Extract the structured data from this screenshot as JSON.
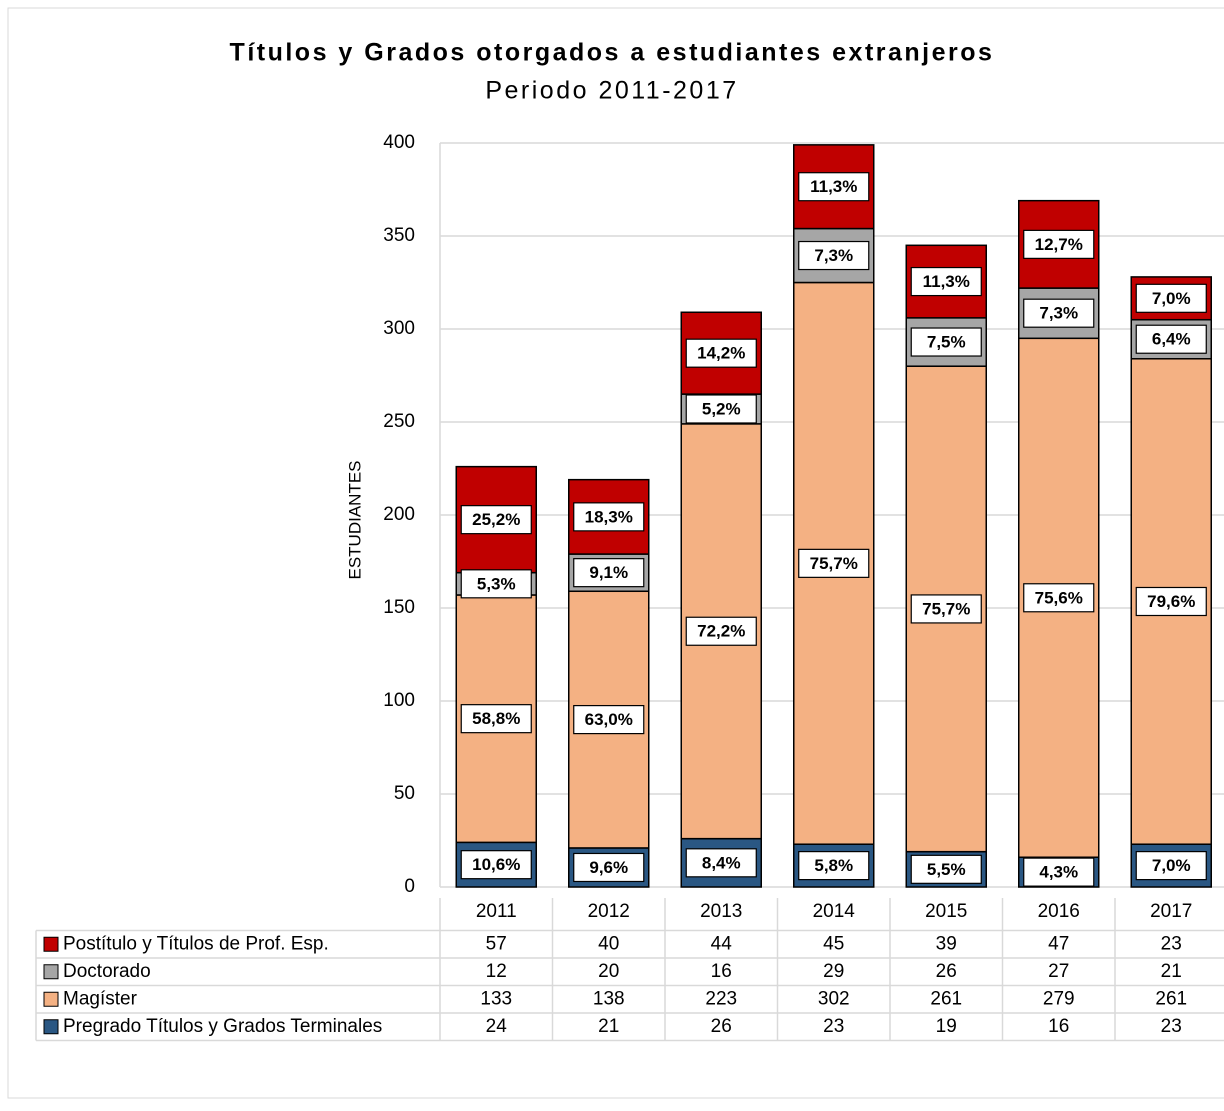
{
  "chart_data": {
    "type": "stacked-bar",
    "title": "Títulos y Grados otorgados a estudiantes extranjeros",
    "subtitle": "Periodo 2011-2017",
    "y_label": "ESTUDIANTES",
    "categories": [
      "2011",
      "2012",
      "2013",
      "2014",
      "2015",
      "2016",
      "2017"
    ],
    "ylim": [
      0,
      400
    ],
    "yticks": [
      0,
      50,
      100,
      150,
      200,
      250,
      300,
      350,
      400
    ],
    "grid": true,
    "series": [
      {
        "name": "Pregrado Títulos y Grados Terminales",
        "color": "#2a5783",
        "values": [
          24,
          21,
          26,
          23,
          19,
          16,
          23
        ],
        "share_labels": [
          "10,6%",
          "9,6%",
          "8,4%",
          "5,8%",
          "5,5%",
          "4,3%",
          "7,0%"
        ]
      },
      {
        "name": "Magíster",
        "color": "#f4b183",
        "values": [
          133,
          138,
          223,
          302,
          261,
          279,
          261
        ],
        "share_labels": [
          "58,8%",
          "63,0%",
          "72,2%",
          "75,7%",
          "75,7%",
          "75,6%",
          "79,6%"
        ]
      },
      {
        "name": "Doctorado",
        "color": "#a6a6a6",
        "values": [
          12,
          20,
          16,
          29,
          26,
          27,
          21
        ],
        "share_labels": [
          "5,3%",
          "9,1%",
          "5,2%",
          "7,3%",
          "7,5%",
          "7,3%",
          "6,4%"
        ]
      },
      {
        "name": "Postítulo y Títulos de Prof. Esp.",
        "color": "#c00000",
        "values": [
          57,
          40,
          44,
          45,
          39,
          47,
          23
        ],
        "share_labels": [
          "25,2%",
          "18,3%",
          "14,2%",
          "11,3%",
          "11,3%",
          "12,7%",
          "7,0%"
        ]
      }
    ]
  }
}
